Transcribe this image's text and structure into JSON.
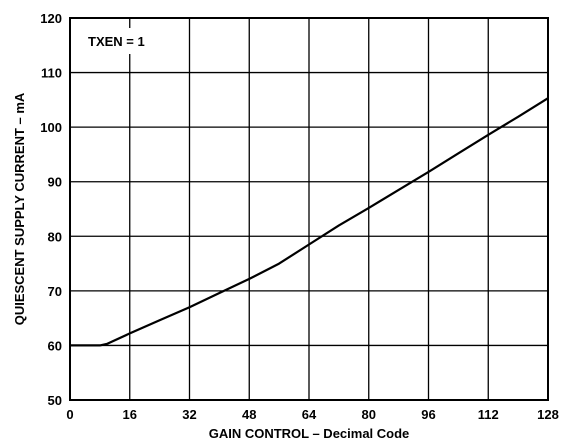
{
  "chart_data": {
    "type": "line",
    "title": "",
    "xlabel": "GAIN CONTROL – Decimal Code",
    "ylabel": "QUIESCENT SUPPLY CURRENT – mA",
    "xlim": [
      0,
      128
    ],
    "ylim": [
      50,
      120
    ],
    "xticks": [
      0,
      16,
      32,
      48,
      64,
      80,
      96,
      112,
      128
    ],
    "yticks": [
      50,
      60,
      70,
      80,
      90,
      100,
      110,
      120
    ],
    "grid": true,
    "annotation": "TXEN = 1",
    "series": [
      {
        "x": [
          0,
          6,
          8,
          10,
          16,
          24,
          32,
          40,
          48,
          56,
          64,
          72,
          80,
          88,
          96,
          104,
          112,
          120,
          128
        ],
        "y": [
          60,
          60,
          60,
          60.3,
          62.2,
          64.6,
          67,
          69.6,
          72.2,
          75,
          78.5,
          82,
          85.2,
          88.5,
          91.8,
          95.2,
          98.6,
          101.9,
          105.3
        ]
      }
    ]
  }
}
